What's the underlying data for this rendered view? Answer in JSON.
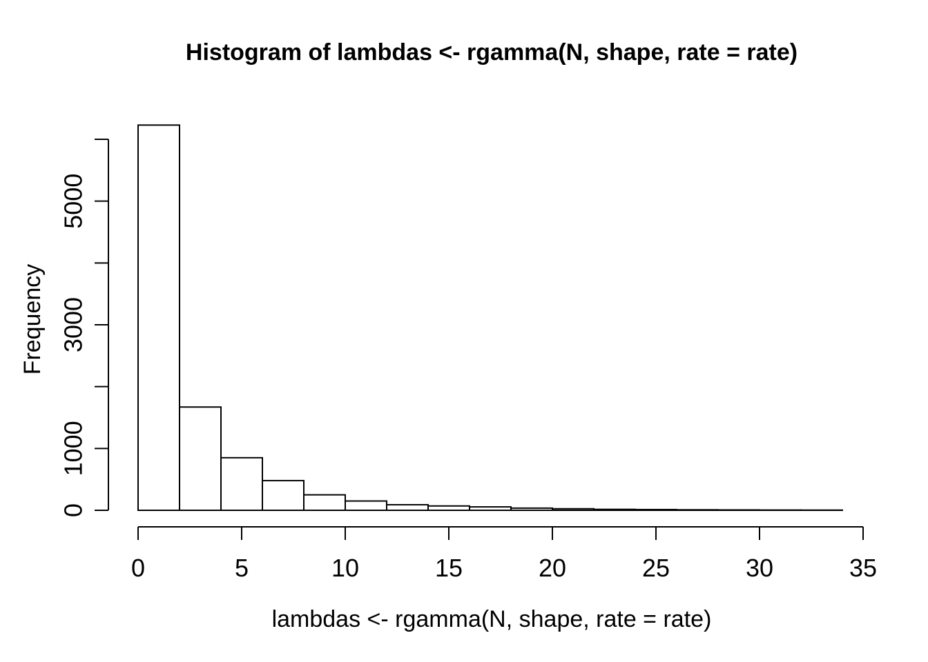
{
  "page": {
    "background": "#ffffff",
    "foreground": "#000000"
  },
  "chart_data": {
    "type": "bar",
    "subtype": "histogram",
    "title": "Histogram of lambdas <- rgamma(N, shape, rate = rate)",
    "xlabel": "lambdas <- rgamma(N, shape, rate = rate)",
    "ylabel": "Frequency",
    "bin_edges": [
      0,
      2,
      4,
      6,
      8,
      10,
      12,
      14,
      16,
      18,
      20,
      22,
      24,
      26,
      28,
      30,
      32,
      34
    ],
    "values": [
      6230,
      1670,
      850,
      480,
      250,
      150,
      90,
      70,
      55,
      35,
      25,
      15,
      12,
      8,
      6,
      4,
      3
    ],
    "xlim": [
      0,
      35
    ],
    "ylim": [
      0,
      6000
    ],
    "x_ticks": [
      0,
      5,
      10,
      15,
      20,
      25,
      30,
      35
    ],
    "x_tick_labels": [
      "0",
      "5",
      "10",
      "15",
      "20",
      "25",
      "30",
      "35"
    ],
    "y_ticks": [
      0,
      1000,
      2000,
      3000,
      4000,
      5000,
      6000
    ],
    "y_tick_labels": [
      "0",
      "1000",
      "",
      "3000",
      "",
      "5000",
      ""
    ],
    "grid": false,
    "legend": "none",
    "bar_fill": "#ffffff",
    "bar_border": "#000000",
    "axis_color": "#000000"
  }
}
